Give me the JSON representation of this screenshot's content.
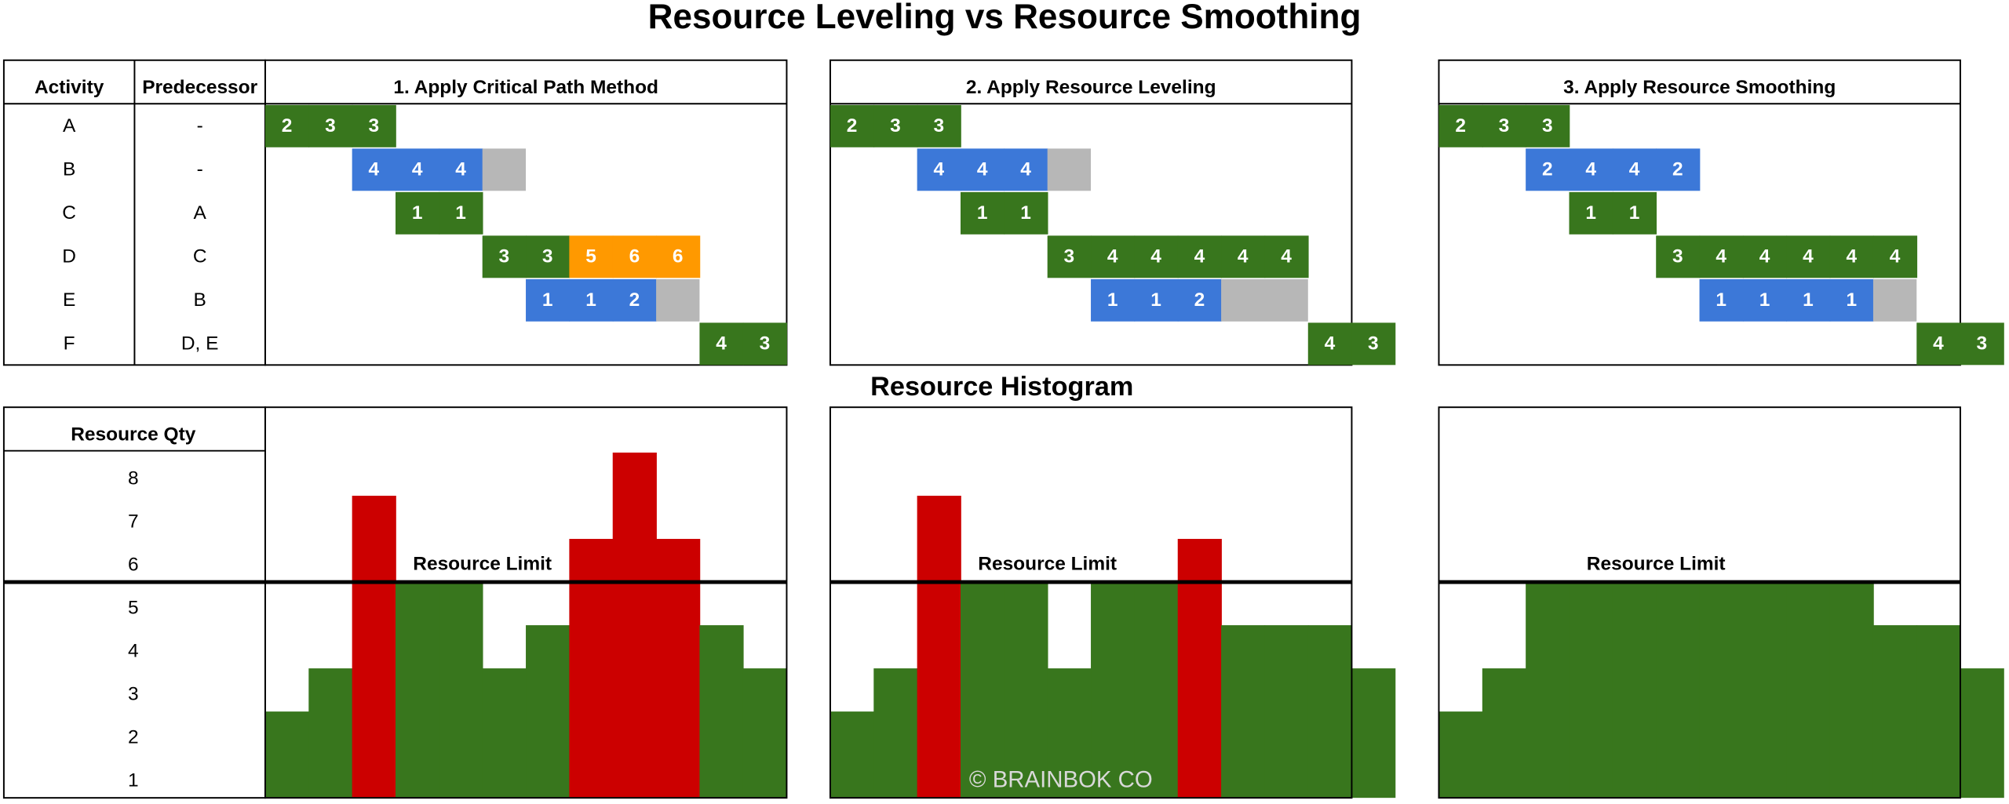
{
  "title": "Resource Leveling vs Resource Smoothing",
  "table": {
    "headers": [
      "Activity",
      "Predecessor"
    ],
    "rows": [
      [
        "A",
        "-"
      ],
      [
        "B",
        "-"
      ],
      [
        "C",
        "A"
      ],
      [
        "D",
        "C"
      ],
      [
        "E",
        "B"
      ],
      [
        "F",
        "D, E"
      ]
    ]
  },
  "histogram_title": "Resource Histogram",
  "resource_axis": {
    "label": "Resource Qty",
    "ticks": [
      1,
      2,
      3,
      4,
      5,
      6,
      7,
      8
    ]
  },
  "resource_limit": {
    "label": "Resource Limit",
    "value": 5
  },
  "histogram_style": {
    "color": "#38761d",
    "over_limit_color": "#cc0000",
    "limit_line_color": "#000000"
  },
  "slack_color": "#b7b7b7",
  "watermark": "© BRAINBOK CO",
  "panels": [
    {
      "title": "1. Apply Critical Path Method",
      "tasks": [
        {
          "start": 0,
          "segments": [
            {
              "color": "#38761d",
              "values": [
                2,
                3,
                3
              ]
            }
          ],
          "slack": 0
        },
        {
          "start": 2,
          "segments": [
            {
              "color": "#3c78d8",
              "values": [
                4,
                4,
                4
              ]
            }
          ],
          "slack": 1
        },
        {
          "start": 3,
          "segments": [
            {
              "color": "#38761d",
              "values": [
                1,
                1
              ]
            }
          ],
          "slack": 0
        },
        {
          "start": 5,
          "segments": [
            {
              "color": "#38761d",
              "values": [
                3,
                3
              ]
            },
            {
              "color": "#ff9900",
              "values": [
                5,
                6,
                6
              ]
            }
          ],
          "slack": 0
        },
        {
          "start": 6,
          "segments": [
            {
              "color": "#3c78d8",
              "values": [
                1,
                1,
                2
              ]
            }
          ],
          "slack": 1
        },
        {
          "start": 10,
          "segments": [
            {
              "color": "#38761d",
              "values": [
                4,
                3
              ]
            }
          ],
          "slack": 0
        }
      ],
      "histogram": [
        2,
        3,
        7,
        5,
        5,
        3,
        4,
        6,
        8,
        6,
        4,
        3
      ]
    },
    {
      "title": "2. Apply Resource Leveling",
      "tasks": [
        {
          "start": 0,
          "segments": [
            {
              "color": "#38761d",
              "values": [
                2,
                3,
                3
              ]
            }
          ],
          "slack": 0
        },
        {
          "start": 2,
          "segments": [
            {
              "color": "#3c78d8",
              "values": [
                4,
                4,
                4
              ]
            }
          ],
          "slack": 1
        },
        {
          "start": 3,
          "segments": [
            {
              "color": "#38761d",
              "values": [
                1,
                1
              ]
            }
          ],
          "slack": 0
        },
        {
          "start": 5,
          "segments": [
            {
              "color": "#38761d",
              "values": [
                3,
                4,
                4,
                4,
                4,
                4
              ]
            }
          ],
          "slack": 0
        },
        {
          "start": 6,
          "segments": [
            {
              "color": "#3c78d8",
              "values": [
                1,
                1,
                2
              ]
            }
          ],
          "slack": 2
        },
        {
          "start": 11,
          "segments": [
            {
              "color": "#38761d",
              "values": [
                4,
                3
              ]
            }
          ],
          "slack": 0
        }
      ],
      "histogram": [
        2,
        3,
        7,
        5,
        5,
        3,
        5,
        5,
        6,
        4,
        4,
        4,
        3
      ]
    },
    {
      "title": "3. Apply Resource Smoothing",
      "tasks": [
        {
          "start": 0,
          "segments": [
            {
              "color": "#38761d",
              "values": [
                2,
                3,
                3
              ]
            }
          ],
          "slack": 0
        },
        {
          "start": 2,
          "segments": [
            {
              "color": "#3c78d8",
              "values": [
                2,
                4,
                4,
                2
              ]
            }
          ],
          "slack": 0
        },
        {
          "start": 3,
          "segments": [
            {
              "color": "#38761d",
              "values": [
                1,
                1
              ]
            }
          ],
          "slack": 0
        },
        {
          "start": 5,
          "segments": [
            {
              "color": "#38761d",
              "values": [
                3,
                4,
                4,
                4,
                4,
                4
              ]
            }
          ],
          "slack": 0
        },
        {
          "start": 6,
          "segments": [
            {
              "color": "#3c78d8",
              "values": [
                1,
                1,
                1,
                1
              ]
            }
          ],
          "slack": 1
        },
        {
          "start": 11,
          "segments": [
            {
              "color": "#38761d",
              "values": [
                4,
                3
              ]
            }
          ],
          "slack": 0
        }
      ],
      "histogram": [
        2,
        3,
        5,
        5,
        5,
        5,
        5,
        5,
        5,
        5,
        4,
        4,
        3
      ]
    }
  ]
}
